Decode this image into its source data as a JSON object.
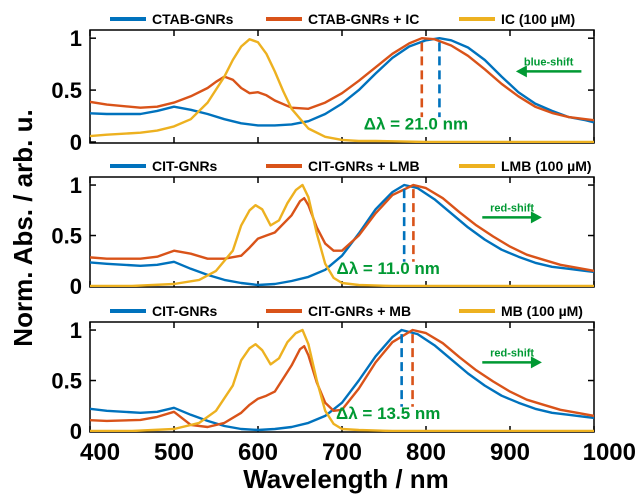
{
  "colors": {
    "blue": "#0072BD",
    "orange": "#D95319",
    "yellow": "#EDB120",
    "green": "#009933"
  },
  "axes": {
    "xlabel": "Wavelength / nm",
    "ylabel": "Norm. Abs. / arb. u.",
    "xlim": [
      400,
      1000
    ],
    "xticks": [
      400,
      500,
      600,
      700,
      800,
      900,
      1000
    ]
  },
  "chart_data": [
    {
      "type": "line",
      "legend": [
        "CTAB-GNRs",
        "CTAB-GNRs + IC",
        "IC (100 µM)"
      ],
      "ylim": [
        0,
        1.05
      ],
      "yticks": [
        0,
        0.5,
        1
      ],
      "ytick_labels": [
        "0",
        "0.5",
        "1"
      ],
      "delta_label": "Δλ = 21.0 nm",
      "shift_label": "blue-shift",
      "shift_direction": "left",
      "series": [
        {
          "name": "CTAB-GNRs",
          "color_key": "blue",
          "x": [
            390,
            420,
            460,
            480,
            500,
            520,
            540,
            560,
            580,
            600,
            620,
            640,
            660,
            680,
            700,
            720,
            740,
            760,
            780,
            800,
            816,
            830,
            850,
            870,
            890,
            910,
            930,
            950,
            970,
            990,
            1000
          ],
          "y": [
            0.28,
            0.27,
            0.27,
            0.3,
            0.34,
            0.31,
            0.27,
            0.22,
            0.18,
            0.16,
            0.16,
            0.17,
            0.2,
            0.27,
            0.37,
            0.5,
            0.66,
            0.81,
            0.92,
            0.98,
            1.0,
            0.98,
            0.91,
            0.79,
            0.63,
            0.48,
            0.37,
            0.3,
            0.24,
            0.21,
            0.19
          ]
        },
        {
          "name": "CTAB-GNRs + IC",
          "color_key": "orange",
          "x": [
            390,
            420,
            460,
            480,
            500,
            520,
            540,
            550,
            560,
            570,
            580,
            590,
            600,
            610,
            620,
            640,
            660,
            680,
            700,
            720,
            740,
            760,
            780,
            795,
            810,
            830,
            850,
            870,
            890,
            910,
            930,
            950,
            970,
            990,
            1000
          ],
          "y": [
            0.4,
            0.36,
            0.33,
            0.34,
            0.38,
            0.44,
            0.52,
            0.58,
            0.63,
            0.6,
            0.52,
            0.47,
            0.48,
            0.45,
            0.4,
            0.33,
            0.32,
            0.38,
            0.47,
            0.59,
            0.72,
            0.85,
            0.95,
            1.0,
            0.99,
            0.93,
            0.83,
            0.7,
            0.56,
            0.44,
            0.34,
            0.28,
            0.24,
            0.22,
            0.21
          ]
        },
        {
          "name": "IC (100 µM)",
          "color_key": "yellow",
          "x": [
            390,
            420,
            460,
            480,
            500,
            520,
            540,
            560,
            570,
            580,
            590,
            600,
            610,
            620,
            630,
            640,
            660,
            680,
            700,
            720,
            740,
            800,
            900,
            1000
          ],
          "y": [
            0.05,
            0.07,
            0.09,
            0.11,
            0.15,
            0.22,
            0.38,
            0.63,
            0.79,
            0.92,
            0.99,
            0.96,
            0.85,
            0.68,
            0.49,
            0.32,
            0.13,
            0.05,
            0.02,
            0.01,
            0.01,
            0.0,
            0.0,
            0.0
          ]
        }
      ],
      "peaks": [
        {
          "x": 816,
          "color_key": "blue"
        },
        {
          "x": 795,
          "color_key": "orange"
        }
      ]
    },
    {
      "type": "line",
      "legend": [
        "CIT-GNRs",
        "CIT-GNRs + LMB",
        "LMB (100 µM)"
      ],
      "ylim": [
        0,
        1.05
      ],
      "yticks": [
        0,
        0.5,
        1
      ],
      "ytick_labels": [
        "0",
        "0.5",
        "1"
      ],
      "delta_label": "Δλ = 11.0 nm",
      "shift_label": "red-shift",
      "shift_direction": "right",
      "series": [
        {
          "name": "CIT-GNRs",
          "color_key": "blue",
          "x": [
            390,
            420,
            460,
            480,
            500,
            520,
            540,
            560,
            580,
            600,
            620,
            640,
            660,
            680,
            700,
            720,
            740,
            760,
            774,
            790,
            810,
            830,
            850,
            870,
            890,
            910,
            930,
            950,
            970,
            990,
            1000
          ],
          "y": [
            0.24,
            0.22,
            0.2,
            0.21,
            0.24,
            0.17,
            0.11,
            0.06,
            0.03,
            0.01,
            0.02,
            0.05,
            0.09,
            0.16,
            0.3,
            0.52,
            0.76,
            0.93,
            1.0,
            0.97,
            0.86,
            0.72,
            0.58,
            0.46,
            0.36,
            0.29,
            0.23,
            0.19,
            0.17,
            0.15,
            0.14
          ]
        },
        {
          "name": "CIT-GNRs + LMB",
          "color_key": "orange",
          "x": [
            390,
            420,
            460,
            480,
            500,
            520,
            540,
            560,
            580,
            590,
            600,
            610,
            620,
            640,
            650,
            655,
            660,
            670,
            680,
            690,
            700,
            720,
            740,
            760,
            785,
            800,
            820,
            840,
            860,
            880,
            900,
            920,
            940,
            960,
            980,
            1000
          ],
          "y": [
            0.29,
            0.27,
            0.27,
            0.29,
            0.35,
            0.32,
            0.27,
            0.27,
            0.3,
            0.38,
            0.47,
            0.5,
            0.53,
            0.7,
            0.84,
            0.87,
            0.8,
            0.58,
            0.42,
            0.35,
            0.35,
            0.5,
            0.72,
            0.9,
            1.0,
            0.97,
            0.87,
            0.73,
            0.6,
            0.49,
            0.39,
            0.31,
            0.26,
            0.21,
            0.18,
            0.15
          ]
        },
        {
          "name": "LMB (100 µM)",
          "color_key": "yellow",
          "x": [
            390,
            450,
            500,
            530,
            550,
            570,
            580,
            590,
            597,
            605,
            615,
            625,
            635,
            645,
            653,
            660,
            670,
            680,
            690,
            700,
            720,
            760,
            900,
            1000
          ],
          "y": [
            0.0,
            0.0,
            0.02,
            0.06,
            0.15,
            0.35,
            0.6,
            0.75,
            0.8,
            0.76,
            0.6,
            0.65,
            0.82,
            0.95,
            1.0,
            0.88,
            0.52,
            0.22,
            0.08,
            0.03,
            0.01,
            0.0,
            0.0,
            0.0
          ]
        }
      ],
      "peaks": [
        {
          "x": 774,
          "color_key": "blue"
        },
        {
          "x": 785,
          "color_key": "orange"
        }
      ]
    },
    {
      "type": "line",
      "legend": [
        "CIT-GNRs",
        "CIT-GNRs + MB",
        "MB (100 µM)"
      ],
      "ylim": [
        0,
        1.05
      ],
      "yticks": [
        0,
        0.5,
        1
      ],
      "ytick_labels": [
        "0",
        "0.5",
        "1"
      ],
      "delta_label": "Δλ = 13.5 nm",
      "shift_label": "red-shift",
      "shift_direction": "right",
      "series": [
        {
          "name": "CIT-GNRs",
          "color_key": "blue",
          "x": [
            390,
            420,
            460,
            480,
            500,
            520,
            540,
            560,
            580,
            600,
            620,
            640,
            660,
            680,
            700,
            720,
            740,
            760,
            771,
            790,
            810,
            830,
            850,
            870,
            890,
            910,
            930,
            950,
            970,
            990,
            1000
          ],
          "y": [
            0.23,
            0.2,
            0.18,
            0.19,
            0.23,
            0.16,
            0.1,
            0.05,
            0.02,
            0.01,
            0.02,
            0.04,
            0.08,
            0.15,
            0.28,
            0.5,
            0.74,
            0.93,
            1.0,
            0.96,
            0.85,
            0.71,
            0.57,
            0.45,
            0.35,
            0.28,
            0.22,
            0.18,
            0.16,
            0.14,
            0.13
          ]
        },
        {
          "name": "CIT-GNRs + MB",
          "color_key": "orange",
          "x": [
            390,
            420,
            460,
            480,
            500,
            520,
            540,
            560,
            580,
            590,
            600,
            610,
            620,
            640,
            650,
            655,
            660,
            670,
            680,
            690,
            700,
            720,
            740,
            760,
            784,
            800,
            820,
            840,
            860,
            880,
            900,
            920,
            940,
            960,
            980,
            1000
          ],
          "y": [
            0.11,
            0.1,
            0.11,
            0.14,
            0.19,
            0.06,
            0.04,
            0.08,
            0.18,
            0.26,
            0.32,
            0.35,
            0.39,
            0.65,
            0.81,
            0.84,
            0.75,
            0.48,
            0.28,
            0.2,
            0.21,
            0.42,
            0.68,
            0.88,
            1.0,
            0.97,
            0.87,
            0.73,
            0.6,
            0.49,
            0.39,
            0.31,
            0.26,
            0.21,
            0.18,
            0.15
          ]
        },
        {
          "name": "MB (100 µM)",
          "color_key": "yellow",
          "x": [
            390,
            450,
            500,
            530,
            550,
            570,
            580,
            590,
            597,
            605,
            615,
            625,
            635,
            645,
            653,
            660,
            670,
            680,
            690,
            700,
            720,
            760,
            900,
            1000
          ],
          "y": [
            0.0,
            0.0,
            0.02,
            0.08,
            0.2,
            0.45,
            0.7,
            0.82,
            0.86,
            0.8,
            0.66,
            0.72,
            0.88,
            0.97,
            1.0,
            0.86,
            0.5,
            0.2,
            0.07,
            0.02,
            0.01,
            0.0,
            0.0,
            0.0
          ]
        }
      ],
      "peaks": [
        {
          "x": 771,
          "color_key": "blue"
        },
        {
          "x": 784,
          "color_key": "orange"
        }
      ]
    }
  ]
}
